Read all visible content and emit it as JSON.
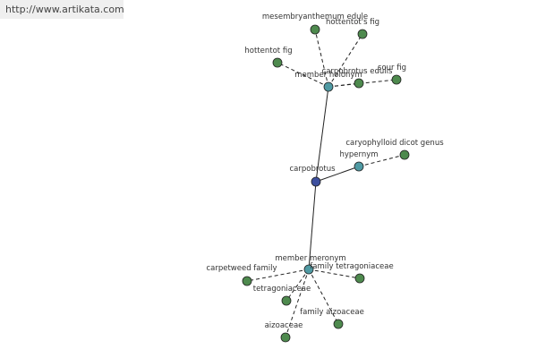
{
  "header": {
    "url": "http://www.artikata.com"
  },
  "nodes": [
    {
      "label": "carpobrotus"
    },
    {
      "label": "member holonym"
    },
    {
      "label": "hypernym"
    },
    {
      "label": "member meronym"
    },
    {
      "label": "mesembryanthemum edule"
    },
    {
      "label": "hottentot's fig"
    },
    {
      "label": "hottentot fig"
    },
    {
      "label": "carpobrotus edulis"
    },
    {
      "label": "sour fig"
    },
    {
      "label": "caryophylloid dicot genus"
    },
    {
      "label": "carpetweed family"
    },
    {
      "label": "family tetragoniaceae"
    },
    {
      "label": "tetragoniaceae"
    },
    {
      "label": "family aizoaceae"
    },
    {
      "label": "aizoaceae"
    }
  ]
}
